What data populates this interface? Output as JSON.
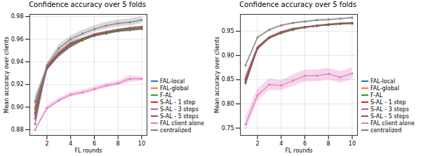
{
  "chart_data": [
    {
      "type": "line",
      "title": "Confidence accuracy over 5 folds",
      "xlabel": "FL rounds",
      "ylabel": "Mean accuracy over clients",
      "x": [
        1,
        2,
        3,
        4,
        5,
        6,
        7,
        8,
        9,
        10
      ],
      "xlim": [
        0.55,
        10.45
      ],
      "xticks": [
        2,
        4,
        6,
        8,
        10
      ],
      "ylim": [
        0.875,
        0.982
      ],
      "yticks": [
        0.88,
        {
          "value": 0.9,
          "label": "0.90"
        },
        0.92,
        0.94,
        0.96,
        0.98
      ],
      "grid": true,
      "legend": "lower right",
      "marker": "o",
      "series": [
        {
          "name": "FAL-local",
          "color": "#1f77b4",
          "values": [
            0.905,
            0.935,
            0.947,
            0.955,
            0.96,
            0.964,
            0.966,
            0.968,
            0.969,
            0.97
          ],
          "errors": [
            0.005,
            0.002,
            0.002,
            0.002,
            0.001,
            0.001,
            0.001,
            0.001,
            0.001,
            0.001
          ]
        },
        {
          "name": "FAL-global",
          "color": "#ff7f0e",
          "values": [
            0.9,
            0.935,
            0.946,
            0.954,
            0.959,
            0.963,
            0.965,
            0.967,
            0.968,
            0.969
          ],
          "errors": [
            0.005,
            0.002,
            0.002,
            0.002,
            0.001,
            0.001,
            0.001,
            0.001,
            0.001,
            0.001
          ]
        },
        {
          "name": "F-AL",
          "color": "#2ca02c",
          "values": [
            0.898,
            0.934,
            0.946,
            0.954,
            0.959,
            0.963,
            0.965,
            0.967,
            0.968,
            0.969
          ],
          "errors": [
            0.005,
            0.002,
            0.002,
            0.002,
            0.001,
            0.001,
            0.001,
            0.001,
            0.001,
            0.001
          ]
        },
        {
          "name": "S-AL - 1 step",
          "color": "#d62728",
          "values": [
            0.895,
            0.935,
            0.947,
            0.955,
            0.96,
            0.964,
            0.966,
            0.968,
            0.969,
            0.97
          ],
          "errors": [
            0.005,
            0.002,
            0.002,
            0.002,
            0.001,
            0.001,
            0.001,
            0.001,
            0.001,
            0.001
          ]
        },
        {
          "name": "S-AL - 3 steps",
          "color": "#9467bd",
          "values": [
            0.893,
            0.934,
            0.946,
            0.955,
            0.96,
            0.963,
            0.966,
            0.968,
            0.969,
            0.97
          ],
          "errors": [
            0.005,
            0.002,
            0.002,
            0.002,
            0.001,
            0.001,
            0.001,
            0.001,
            0.001,
            0.001
          ]
        },
        {
          "name": "S-AL - 5 steps",
          "color": "#8c564b",
          "values": [
            0.89,
            0.934,
            0.947,
            0.956,
            0.96,
            0.964,
            0.966,
            0.968,
            0.97,
            0.971
          ],
          "errors": [
            0.005,
            0.002,
            0.002,
            0.002,
            0.001,
            0.001,
            0.001,
            0.001,
            0.001,
            0.001
          ]
        },
        {
          "name": "FAL client alone",
          "color": "#e377c2",
          "values": [
            0.88,
            0.899,
            0.906,
            0.911,
            0.913,
            0.916,
            0.919,
            0.921,
            0.925,
            0.925
          ],
          "errors": [
            0.002,
            0.002,
            0.002,
            0.002,
            0.002,
            0.002,
            0.002,
            0.002,
            0.003,
            0.002
          ]
        },
        {
          "name": "centralized",
          "color": "#7f7f7f",
          "values": [
            0.885,
            0.937,
            0.952,
            0.96,
            0.965,
            0.969,
            0.972,
            0.974,
            0.975,
            0.977
          ],
          "errors": [
            0.003,
            0.002,
            0.003,
            0.003,
            0.003,
            0.003,
            0.003,
            0.003,
            0.003,
            0.003
          ]
        }
      ]
    },
    {
      "type": "line",
      "title": "Confidence accuracy over 5 folds",
      "xlabel": "FL rounds",
      "ylabel": "Mean accuracy over clients",
      "x": [
        1,
        2,
        3,
        4,
        5,
        6,
        7,
        8,
        9,
        10
      ],
      "xlim": [
        0.55,
        10.45
      ],
      "xticks": [
        2,
        4,
        6,
        8,
        10
      ],
      "ylim": [
        0.735,
        0.985
      ],
      "yticks": [
        0.75,
        {
          "value": 0.8,
          "label": "0.80"
        },
        0.85,
        {
          "value": 0.9,
          "label": "0.90"
        },
        0.95
      ],
      "grid": true,
      "legend": "lower right",
      "marker": "o",
      "series": [
        {
          "name": "FAL-local",
          "color": "#1f77b4",
          "values": [
            0.852,
            0.916,
            0.937,
            0.947,
            0.954,
            0.958,
            0.961,
            0.964,
            0.966,
            0.967
          ],
          "errors": [
            0.008,
            0.003,
            0.002,
            0.002,
            0.002,
            0.001,
            0.001,
            0.001,
            0.001,
            0.001
          ]
        },
        {
          "name": "FAL-global",
          "color": "#ff7f0e",
          "values": [
            0.848,
            0.915,
            0.936,
            0.946,
            0.953,
            0.958,
            0.961,
            0.963,
            0.965,
            0.966
          ],
          "errors": [
            0.008,
            0.003,
            0.002,
            0.002,
            0.002,
            0.001,
            0.001,
            0.001,
            0.001,
            0.001
          ]
        },
        {
          "name": "F-AL",
          "color": "#2ca02c",
          "values": [
            0.846,
            0.914,
            0.936,
            0.946,
            0.953,
            0.958,
            0.961,
            0.963,
            0.965,
            0.966
          ],
          "errors": [
            0.008,
            0.003,
            0.002,
            0.002,
            0.002,
            0.001,
            0.001,
            0.001,
            0.001,
            0.001
          ]
        },
        {
          "name": "S-AL - 1 step",
          "color": "#d62728",
          "values": [
            0.85,
            0.915,
            0.937,
            0.947,
            0.954,
            0.958,
            0.961,
            0.964,
            0.966,
            0.967
          ],
          "errors": [
            0.008,
            0.003,
            0.002,
            0.002,
            0.002,
            0.001,
            0.001,
            0.001,
            0.001,
            0.001
          ]
        },
        {
          "name": "S-AL - 3 steps",
          "color": "#9467bd",
          "values": [
            0.845,
            0.914,
            0.936,
            0.947,
            0.954,
            0.958,
            0.961,
            0.964,
            0.966,
            0.967
          ],
          "errors": [
            0.008,
            0.003,
            0.002,
            0.002,
            0.002,
            0.001,
            0.001,
            0.001,
            0.001,
            0.001
          ]
        },
        {
          "name": "S-AL - 5 steps",
          "color": "#8c564b",
          "values": [
            0.843,
            0.914,
            0.937,
            0.948,
            0.955,
            0.959,
            0.962,
            0.964,
            0.966,
            0.967
          ],
          "errors": [
            0.008,
            0.003,
            0.002,
            0.002,
            0.002,
            0.001,
            0.001,
            0.001,
            0.001,
            0.001
          ]
        },
        {
          "name": "FAL client alone",
          "color": "#e377c2",
          "values": [
            0.758,
            0.818,
            0.84,
            0.838,
            0.848,
            0.858,
            0.858,
            0.862,
            0.855,
            0.863
          ],
          "errors": [
            0.015,
            0.012,
            0.012,
            0.01,
            0.012,
            0.012,
            0.012,
            0.012,
            0.012,
            0.012
          ]
        },
        {
          "name": "centralized",
          "color": "#7f7f7f",
          "values": [
            0.88,
            0.937,
            0.953,
            0.962,
            0.967,
            0.97,
            0.973,
            0.974,
            0.976,
            0.978
          ],
          "errors": [
            0.004,
            0.002,
            0.002,
            0.002,
            0.002,
            0.002,
            0.002,
            0.002,
            0.002,
            0.002
          ]
        }
      ]
    }
  ]
}
